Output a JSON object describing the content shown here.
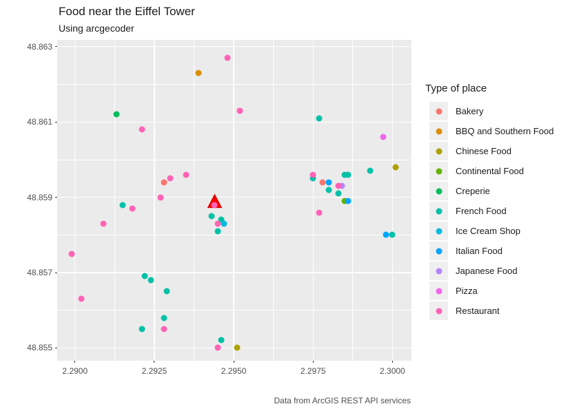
{
  "header": {
    "title": "Food near the Eiffel Tower",
    "subtitle": "Using arcgecoder"
  },
  "caption": "Data from ArcGIS REST API services",
  "legend": {
    "title": "Type of place"
  },
  "colors": {
    "panel_bg": "#EBEBEB",
    "grid": "#FFFFFF",
    "axis_text": "#4D4D4D",
    "marker_red": "#FF0000"
  },
  "chart_data": {
    "type": "scatter",
    "title": "Food near the Eiffel Tower",
    "subtitle": "Using arcgecoder",
    "xlabel": "",
    "ylabel": "",
    "grid": true,
    "legend_position": "right",
    "xlim": [
      2.28944,
      2.3006
    ],
    "ylim": [
      48.85466,
      48.86318
    ],
    "x_ticks": [
      {
        "v": 2.29,
        "label": "2.2900"
      },
      {
        "v": 2.2925,
        "label": "2.2925"
      },
      {
        "v": 2.295,
        "label": "2.2950"
      },
      {
        "v": 2.2975,
        "label": "2.2975"
      },
      {
        "v": 2.3,
        "label": "2.3000"
      }
    ],
    "y_ticks": [
      {
        "v": 48.855,
        "label": "48.855"
      },
      {
        "v": 48.857,
        "label": "48.857"
      },
      {
        "v": 48.859,
        "label": "48.859"
      },
      {
        "v": 48.861,
        "label": "48.861"
      },
      {
        "v": 48.863,
        "label": "48.863"
      }
    ],
    "x_minor": [
      2.29125,
      2.29375,
      2.29625,
      2.29875
    ],
    "y_minor": [
      48.856,
      48.858,
      48.86,
      48.862
    ],
    "marker": {
      "shape": "triangle",
      "name": "eiffel-tower-marker",
      "x": 2.2944,
      "y": 48.8589,
      "fill": "#FF0000",
      "stroke": "#CC0000",
      "half_width": 10,
      "half_height": 9.5
    },
    "series": [
      {
        "name": "Bakery",
        "color": "#F8766D",
        "points": [
          [
            2.2928,
            48.8594
          ],
          [
            2.2978,
            48.8594
          ]
        ]
      },
      {
        "name": "BBQ and Southern Food",
        "color": "#DB8E00",
        "points": [
          [
            2.2939,
            48.8623
          ]
        ]
      },
      {
        "name": "Chinese Food",
        "color": "#AEA200",
        "points": [
          [
            2.3001,
            48.8598
          ],
          [
            2.2951,
            48.855
          ]
        ]
      },
      {
        "name": "Continental Food",
        "color": "#64B200",
        "points": [
          [
            2.2985,
            48.8589
          ]
        ]
      },
      {
        "name": "Creperie",
        "color": "#00BD5C",
        "points": [
          [
            2.2913,
            48.8612
          ]
        ]
      },
      {
        "name": "French Food",
        "color": "#00C1A7",
        "points": [
          [
            2.2977,
            48.8611
          ],
          [
            2.2993,
            48.8597
          ],
          [
            2.2975,
            48.8595
          ],
          [
            2.2985,
            48.8596
          ],
          [
            2.2986,
            48.8596
          ],
          [
            2.298,
            48.8592
          ],
          [
            2.2983,
            48.8591
          ],
          [
            2.2943,
            48.8585
          ],
          [
            2.2946,
            48.8584
          ],
          [
            2.2945,
            48.8581
          ],
          [
            2.2915,
            48.8588
          ],
          [
            2.2922,
            48.8569
          ],
          [
            2.2924,
            48.8568
          ],
          [
            2.2929,
            48.8565
          ],
          [
            2.2928,
            48.8558
          ],
          [
            2.2921,
            48.8555
          ],
          [
            2.2946,
            48.8552
          ],
          [
            2.3,
            48.858
          ]
        ]
      },
      {
        "name": "Ice Cream Shop",
        "color": "#00BADE",
        "points": [
          [
            2.2947,
            48.8583
          ]
        ]
      },
      {
        "name": "Italian Food",
        "color": "#00A6FF",
        "points": [
          [
            2.298,
            48.8594
          ],
          [
            2.2986,
            48.8589
          ],
          [
            2.2998,
            48.858
          ]
        ]
      },
      {
        "name": "Japanese Food",
        "color": "#B385FF",
        "points": [
          [
            2.2984,
            48.8593
          ]
        ]
      },
      {
        "name": "Pizza",
        "color": "#EF67EB",
        "points": [
          [
            2.2997,
            48.8606
          ]
        ]
      },
      {
        "name": "Restaurant",
        "color": "#FF63B6",
        "points": [
          [
            2.2948,
            48.8627
          ],
          [
            2.2952,
            48.8613
          ],
          [
            2.2921,
            48.8608
          ],
          [
            2.2935,
            48.8596
          ],
          [
            2.293,
            48.8595
          ],
          [
            2.2927,
            48.859
          ],
          [
            2.2918,
            48.8587
          ],
          [
            2.2909,
            48.8583
          ],
          [
            2.2899,
            48.8575
          ],
          [
            2.2902,
            48.8563
          ],
          [
            2.2928,
            48.8555
          ],
          [
            2.2945,
            48.855
          ],
          [
            2.2944,
            48.8588
          ],
          [
            2.2945,
            48.8583
          ],
          [
            2.2975,
            48.8596
          ],
          [
            2.2977,
            48.8586
          ],
          [
            2.2983,
            48.8593
          ]
        ]
      }
    ]
  }
}
